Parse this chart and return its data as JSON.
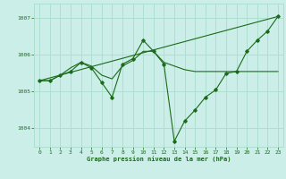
{
  "xlabel": "Graphe pression niveau de la mer (hPa)",
  "background_color": "#cceee8",
  "grid_color": "#aaddcc",
  "line_color": "#1a6b1a",
  "ylim": [
    1003.5,
    1007.4
  ],
  "xlim": [
    -0.5,
    23.5
  ],
  "yticks": [
    1004,
    1005,
    1006,
    1007
  ],
  "xticks": [
    0,
    1,
    2,
    3,
    4,
    5,
    6,
    7,
    8,
    9,
    10,
    11,
    12,
    13,
    14,
    15,
    16,
    17,
    18,
    19,
    20,
    21,
    22,
    23
  ],
  "series_main_x": [
    0,
    1,
    2,
    3,
    4,
    5,
    6,
    7,
    8,
    9,
    10,
    11,
    12,
    13,
    14,
    15,
    16,
    17,
    18,
    19,
    20,
    21,
    22,
    23
  ],
  "series_main_y": [
    1005.3,
    1005.3,
    1005.45,
    1005.55,
    1005.8,
    1005.65,
    1005.25,
    1004.85,
    1005.75,
    1005.9,
    1006.4,
    1006.1,
    1005.75,
    1003.65,
    1004.2,
    1004.5,
    1004.85,
    1005.05,
    1005.5,
    1005.55,
    1006.1,
    1006.4,
    1006.65,
    1007.05
  ],
  "series_smooth_x": [
    0,
    1,
    2,
    3,
    4,
    5,
    6,
    7,
    8,
    9,
    10,
    11,
    12,
    13,
    14,
    15,
    16,
    17,
    18,
    19,
    20,
    21,
    22,
    23
  ],
  "series_smooth_y": [
    1005.3,
    1005.3,
    1005.45,
    1005.65,
    1005.8,
    1005.7,
    1005.45,
    1005.35,
    1005.7,
    1005.85,
    1006.1,
    1006.1,
    1005.8,
    1005.7,
    1005.6,
    1005.55,
    1005.55,
    1005.55,
    1005.55,
    1005.55,
    1005.55,
    1005.55,
    1005.55,
    1005.55
  ],
  "series_trend_x": [
    0,
    23
  ],
  "series_trend_y": [
    1005.3,
    1007.05
  ]
}
